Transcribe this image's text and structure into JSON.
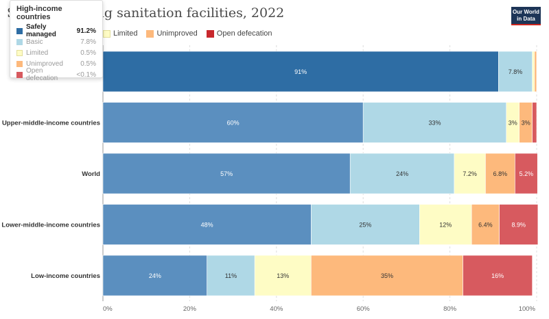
{
  "title": "S[…]ation using sanitation facilities, 2022",
  "logo": {
    "line1": "Our World",
    "line2": "in Data"
  },
  "legend": [
    {
      "name": "Limited",
      "color": "#fefcc5"
    },
    {
      "name": "Unimproved",
      "color": "#fdb97c"
    },
    {
      "name": "Open defecation",
      "color": "#c8282d"
    }
  ],
  "tooltip": {
    "title": "High-income countries",
    "rows": [
      {
        "name": "Safely managed",
        "value": "91.2%",
        "color": "#2e6da4",
        "active": true
      },
      {
        "name": "Basic",
        "value": "7.8%",
        "color": "#afd8e6",
        "active": false
      },
      {
        "name": "Limited",
        "value": "0.5%",
        "color": "#fefcc5",
        "active": false
      },
      {
        "name": "Unimproved",
        "value": "0.5%",
        "color": "#fdb97c",
        "active": false
      },
      {
        "name": "Open defecation",
        "value": "<0.1%",
        "color": "#d75a5f",
        "active": false
      }
    ]
  },
  "chart_data": {
    "type": "bar",
    "orientation": "horizontal",
    "stacked": true,
    "title": "S[…]ation using sanitation facilities, 2022",
    "categories": [
      "High-income countries",
      "Upper-middle-income countries",
      "World",
      "Lower-middle-income countries",
      "Low-income countries"
    ],
    "visible_category_labels": [
      "",
      "Upper-middle-income countries",
      "World",
      "Lower-middle-income countries",
      "Low-income countries"
    ],
    "series": [
      {
        "name": "Safely managed",
        "color": "#5b8fbf",
        "highlight_color": "#2e6da4",
        "values": [
          91.2,
          60,
          57,
          48,
          24
        ],
        "labels": [
          "91%",
          "60%",
          "57%",
          "48%",
          "24%"
        ]
      },
      {
        "name": "Basic",
        "color": "#afd8e6",
        "values": [
          7.8,
          33,
          24,
          25,
          11
        ],
        "labels": [
          "7.8%",
          "33%",
          "24%",
          "25%",
          "11%"
        ]
      },
      {
        "name": "Limited",
        "color": "#fefcc5",
        "values": [
          0.5,
          3,
          7.2,
          12,
          13
        ],
        "labels": [
          "",
          "3%",
          "7.2%",
          "12%",
          "13%"
        ]
      },
      {
        "name": "Unimproved",
        "color": "#fdb97c",
        "values": [
          0.5,
          3,
          6.8,
          6.4,
          35
        ],
        "labels": [
          "",
          "3%",
          "6.8%",
          "6.4%",
          "35%"
        ]
      },
      {
        "name": "Open defecation",
        "color": "#d75a5f",
        "values": [
          0.05,
          1,
          5.2,
          8.9,
          16
        ],
        "labels": [
          "",
          "",
          "5.2%",
          "8.9%",
          "16%"
        ]
      }
    ],
    "highlighted_category": "High-income countries",
    "xlim": [
      0,
      100
    ],
    "xticks": [
      "0%",
      "20%",
      "40%",
      "60%",
      "80%",
      "100%"
    ],
    "grid": true
  }
}
